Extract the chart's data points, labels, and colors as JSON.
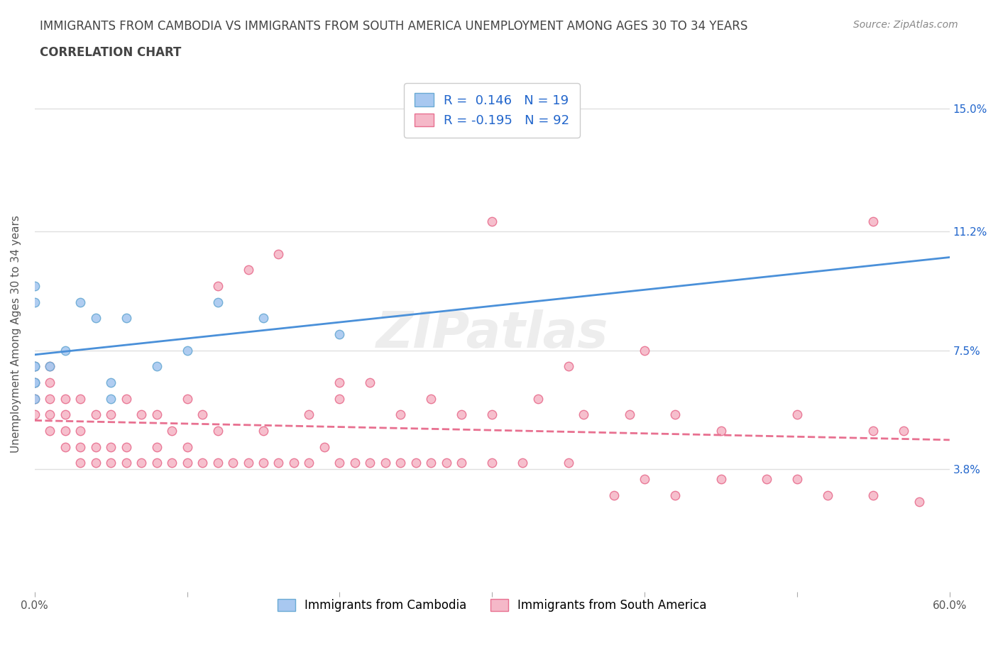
{
  "title_line1": "IMMIGRANTS FROM CAMBODIA VS IMMIGRANTS FROM SOUTH AMERICA UNEMPLOYMENT AMONG AGES 30 TO 34 YEARS",
  "title_line2": "CORRELATION CHART",
  "source_text": "Source: ZipAtlas.com",
  "xlabel": "",
  "ylabel": "Unemployment Among Ages 30 to 34 years",
  "xlim": [
    0.0,
    0.6
  ],
  "ylim": [
    0.0,
    0.16
  ],
  "xtick_labels": [
    "0.0%",
    "",
    "",
    "",
    "",
    "",
    "60.0%"
  ],
  "xtick_values": [
    0.0,
    0.1,
    0.2,
    0.3,
    0.4,
    0.5,
    0.6
  ],
  "ytick_labels": [
    "3.8%",
    "7.5%",
    "11.2%",
    "15.0%"
  ],
  "ytick_values": [
    0.038,
    0.075,
    0.112,
    0.15
  ],
  "watermark": "ZIPatlas",
  "legend_cambodia_label": "Immigrants from Cambodia",
  "legend_south_america_label": "Immigrants from South America",
  "cambodia_R": 0.146,
  "cambodia_N": 19,
  "south_america_R": -0.195,
  "south_america_N": 92,
  "cambodia_color": "#a8c8f0",
  "cambodia_edge_color": "#6aaad4",
  "south_america_color": "#f5b8c8",
  "south_america_edge_color": "#e87090",
  "cambodia_line_color": "#4a90d9",
  "south_america_line_color": "#e87090",
  "grid_color": "#e0e0e0",
  "title_color": "#444444",
  "background_color": "#ffffff",
  "cambodia_x": [
    0.0,
    0.0,
    0.0,
    0.0,
    0.0,
    0.0,
    0.0,
    0.01,
    0.02,
    0.03,
    0.04,
    0.05,
    0.05,
    0.06,
    0.08,
    0.1,
    0.12,
    0.15,
    0.2
  ],
  "cambodia_y": [
    0.06,
    0.065,
    0.07,
    0.07,
    0.065,
    0.09,
    0.095,
    0.07,
    0.075,
    0.09,
    0.085,
    0.06,
    0.065,
    0.085,
    0.07,
    0.075,
    0.09,
    0.085,
    0.08
  ],
  "south_america_x": [
    0.0,
    0.0,
    0.0,
    0.0,
    0.01,
    0.01,
    0.01,
    0.01,
    0.01,
    0.02,
    0.02,
    0.02,
    0.02,
    0.03,
    0.03,
    0.03,
    0.03,
    0.04,
    0.04,
    0.04,
    0.05,
    0.05,
    0.05,
    0.06,
    0.06,
    0.06,
    0.07,
    0.07,
    0.08,
    0.08,
    0.08,
    0.09,
    0.09,
    0.1,
    0.1,
    0.1,
    0.11,
    0.11,
    0.12,
    0.12,
    0.13,
    0.14,
    0.15,
    0.15,
    0.16,
    0.17,
    0.18,
    0.19,
    0.2,
    0.2,
    0.21,
    0.22,
    0.23,
    0.24,
    0.25,
    0.26,
    0.27,
    0.28,
    0.3,
    0.32,
    0.35,
    0.38,
    0.4,
    0.42,
    0.45,
    0.48,
    0.5,
    0.52,
    0.55,
    0.58,
    0.12,
    0.14,
    0.16,
    0.18,
    0.2,
    0.22,
    0.24,
    0.26,
    0.28,
    0.3,
    0.33,
    0.36,
    0.39,
    0.42,
    0.45,
    0.5,
    0.55,
    0.57,
    0.3,
    0.35,
    0.4,
    0.55
  ],
  "south_america_y": [
    0.055,
    0.06,
    0.065,
    0.07,
    0.05,
    0.055,
    0.06,
    0.065,
    0.07,
    0.045,
    0.05,
    0.055,
    0.06,
    0.04,
    0.045,
    0.05,
    0.06,
    0.04,
    0.045,
    0.055,
    0.04,
    0.045,
    0.055,
    0.04,
    0.045,
    0.06,
    0.04,
    0.055,
    0.04,
    0.045,
    0.055,
    0.04,
    0.05,
    0.04,
    0.045,
    0.06,
    0.04,
    0.055,
    0.04,
    0.05,
    0.04,
    0.04,
    0.04,
    0.05,
    0.04,
    0.04,
    0.04,
    0.045,
    0.04,
    0.06,
    0.04,
    0.04,
    0.04,
    0.04,
    0.04,
    0.04,
    0.04,
    0.04,
    0.04,
    0.04,
    0.04,
    0.03,
    0.035,
    0.03,
    0.035,
    0.035,
    0.035,
    0.03,
    0.03,
    0.028,
    0.095,
    0.1,
    0.105,
    0.055,
    0.065,
    0.065,
    0.055,
    0.06,
    0.055,
    0.055,
    0.06,
    0.055,
    0.055,
    0.055,
    0.05,
    0.055,
    0.05,
    0.05,
    0.115,
    0.07,
    0.075,
    0.115
  ]
}
